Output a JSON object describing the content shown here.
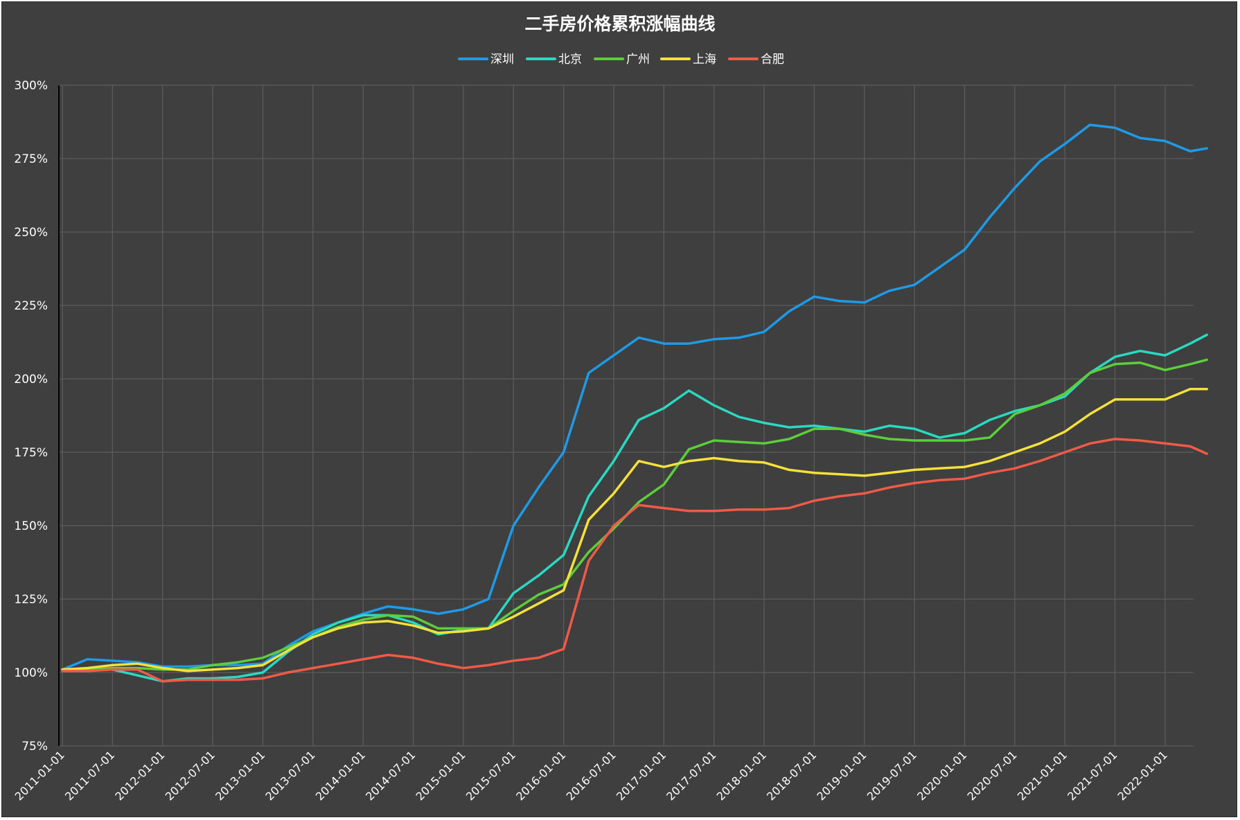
{
  "chart_data": {
    "type": "line",
    "title": "二手房价格累积涨幅曲线",
    "xlabel": "",
    "ylabel": "",
    "ylim": [
      75,
      300
    ],
    "y_ticks": [
      "75%",
      "100%",
      "125%",
      "150%",
      "175%",
      "200%",
      "225%",
      "250%",
      "275%",
      "300%"
    ],
    "y_tick_values": [
      75,
      100,
      125,
      150,
      175,
      200,
      225,
      250,
      275,
      300
    ],
    "x_ticks": [
      "2011-01-01",
      "2011-07-01",
      "2012-01-01",
      "2012-07-01",
      "2013-01-01",
      "2013-07-01",
      "2014-01-01",
      "2014-07-01",
      "2015-01-01",
      "2015-07-01",
      "2016-01-01",
      "2016-07-01",
      "2017-01-01",
      "2017-07-01",
      "2018-01-01",
      "2018-07-01",
      "2019-01-01",
      "2019-07-01",
      "2020-01-01",
      "2020-07-01",
      "2021-01-01",
      "2021-07-01",
      "2022-01-01"
    ],
    "grid": true,
    "legend_position": "top-center",
    "x": [
      "2011-01",
      "2011-04",
      "2011-07",
      "2011-10",
      "2012-01",
      "2012-04",
      "2012-07",
      "2012-10",
      "2013-01",
      "2013-04",
      "2013-07",
      "2013-10",
      "2014-01",
      "2014-04",
      "2014-07",
      "2014-10",
      "2015-01",
      "2015-04",
      "2015-07",
      "2015-10",
      "2016-01",
      "2016-04",
      "2016-07",
      "2016-10",
      "2017-01",
      "2017-04",
      "2017-07",
      "2017-10",
      "2018-01",
      "2018-04",
      "2018-07",
      "2018-10",
      "2019-01",
      "2019-04",
      "2019-07",
      "2019-10",
      "2020-01",
      "2020-04",
      "2020-07",
      "2020-10",
      "2021-01",
      "2021-04",
      "2021-07",
      "2021-10",
      "2022-01",
      "2022-04",
      "2022-06"
    ],
    "series": [
      {
        "name": "深圳",
        "color": "#1e9be8",
        "values": [
          101,
          104.5,
          104,
          103.5,
          102,
          102,
          102.5,
          102.5,
          103,
          109,
          114,
          117,
          120,
          122.5,
          121.5,
          120,
          121.5,
          125,
          150,
          163,
          175,
          202,
          208,
          214,
          212,
          212,
          213.5,
          214,
          216,
          223,
          228,
          226.5,
          226,
          230,
          232,
          238,
          244,
          255,
          265,
          274,
          280,
          286.5,
          285.5,
          282,
          281,
          277.5,
          278.5
        ]
      },
      {
        "name": "北京",
        "color": "#2ad9c2",
        "values": [
          101,
          101,
          101,
          99,
          97,
          98,
          98,
          98.5,
          100,
          107,
          113,
          117,
          119.5,
          119.5,
          117,
          113,
          114.5,
          115,
          127,
          133,
          140,
          160,
          172,
          186,
          190,
          196,
          191,
          187,
          185,
          183.5,
          184,
          183,
          182,
          184,
          183,
          180,
          181.5,
          186,
          189,
          191,
          194,
          202,
          207.5,
          209.5,
          208,
          212,
          215
        ]
      },
      {
        "name": "广州",
        "color": "#5cce3c",
        "values": [
          101,
          101,
          101.5,
          101.5,
          101,
          101,
          102.5,
          103.5,
          105,
          108.5,
          112,
          115.5,
          118,
          119.5,
          119,
          115,
          115,
          115,
          121,
          126.5,
          130,
          141,
          149,
          158,
          164,
          176,
          179,
          178.5,
          178,
          179.5,
          183,
          183,
          181,
          179.5,
          179,
          179,
          179,
          180,
          188,
          191,
          195,
          202,
          205,
          205.5,
          203,
          205,
          206.5
        ]
      },
      {
        "name": "上海",
        "color": "#f5e13a",
        "values": [
          101,
          101.5,
          102.5,
          103,
          101.5,
          100.5,
          101,
          101.5,
          102.5,
          107.5,
          112,
          115,
          117,
          117.5,
          116,
          113.5,
          114,
          115,
          119,
          123.5,
          128,
          152,
          161,
          172,
          170,
          172,
          173,
          172,
          171.5,
          169,
          168,
          167.5,
          167,
          168,
          169,
          169.5,
          170,
          172,
          175,
          178,
          182,
          188,
          193,
          193,
          193,
          196.5,
          196.5
        ]
      },
      {
        "name": "合肥",
        "color": "#f05a47",
        "values": [
          100.5,
          100.5,
          101,
          101,
          97,
          97.5,
          97.5,
          97.5,
          98,
          100,
          101.5,
          103,
          104.5,
          106,
          105,
          103,
          101.5,
          102.5,
          104,
          105,
          108,
          138,
          150,
          157,
          156,
          155,
          155,
          155.5,
          155.5,
          156,
          158.5,
          160,
          161,
          163,
          164.5,
          165.5,
          166,
          168,
          169.5,
          172,
          175,
          178,
          179.5,
          179,
          178,
          177,
          174.5
        ]
      }
    ]
  }
}
